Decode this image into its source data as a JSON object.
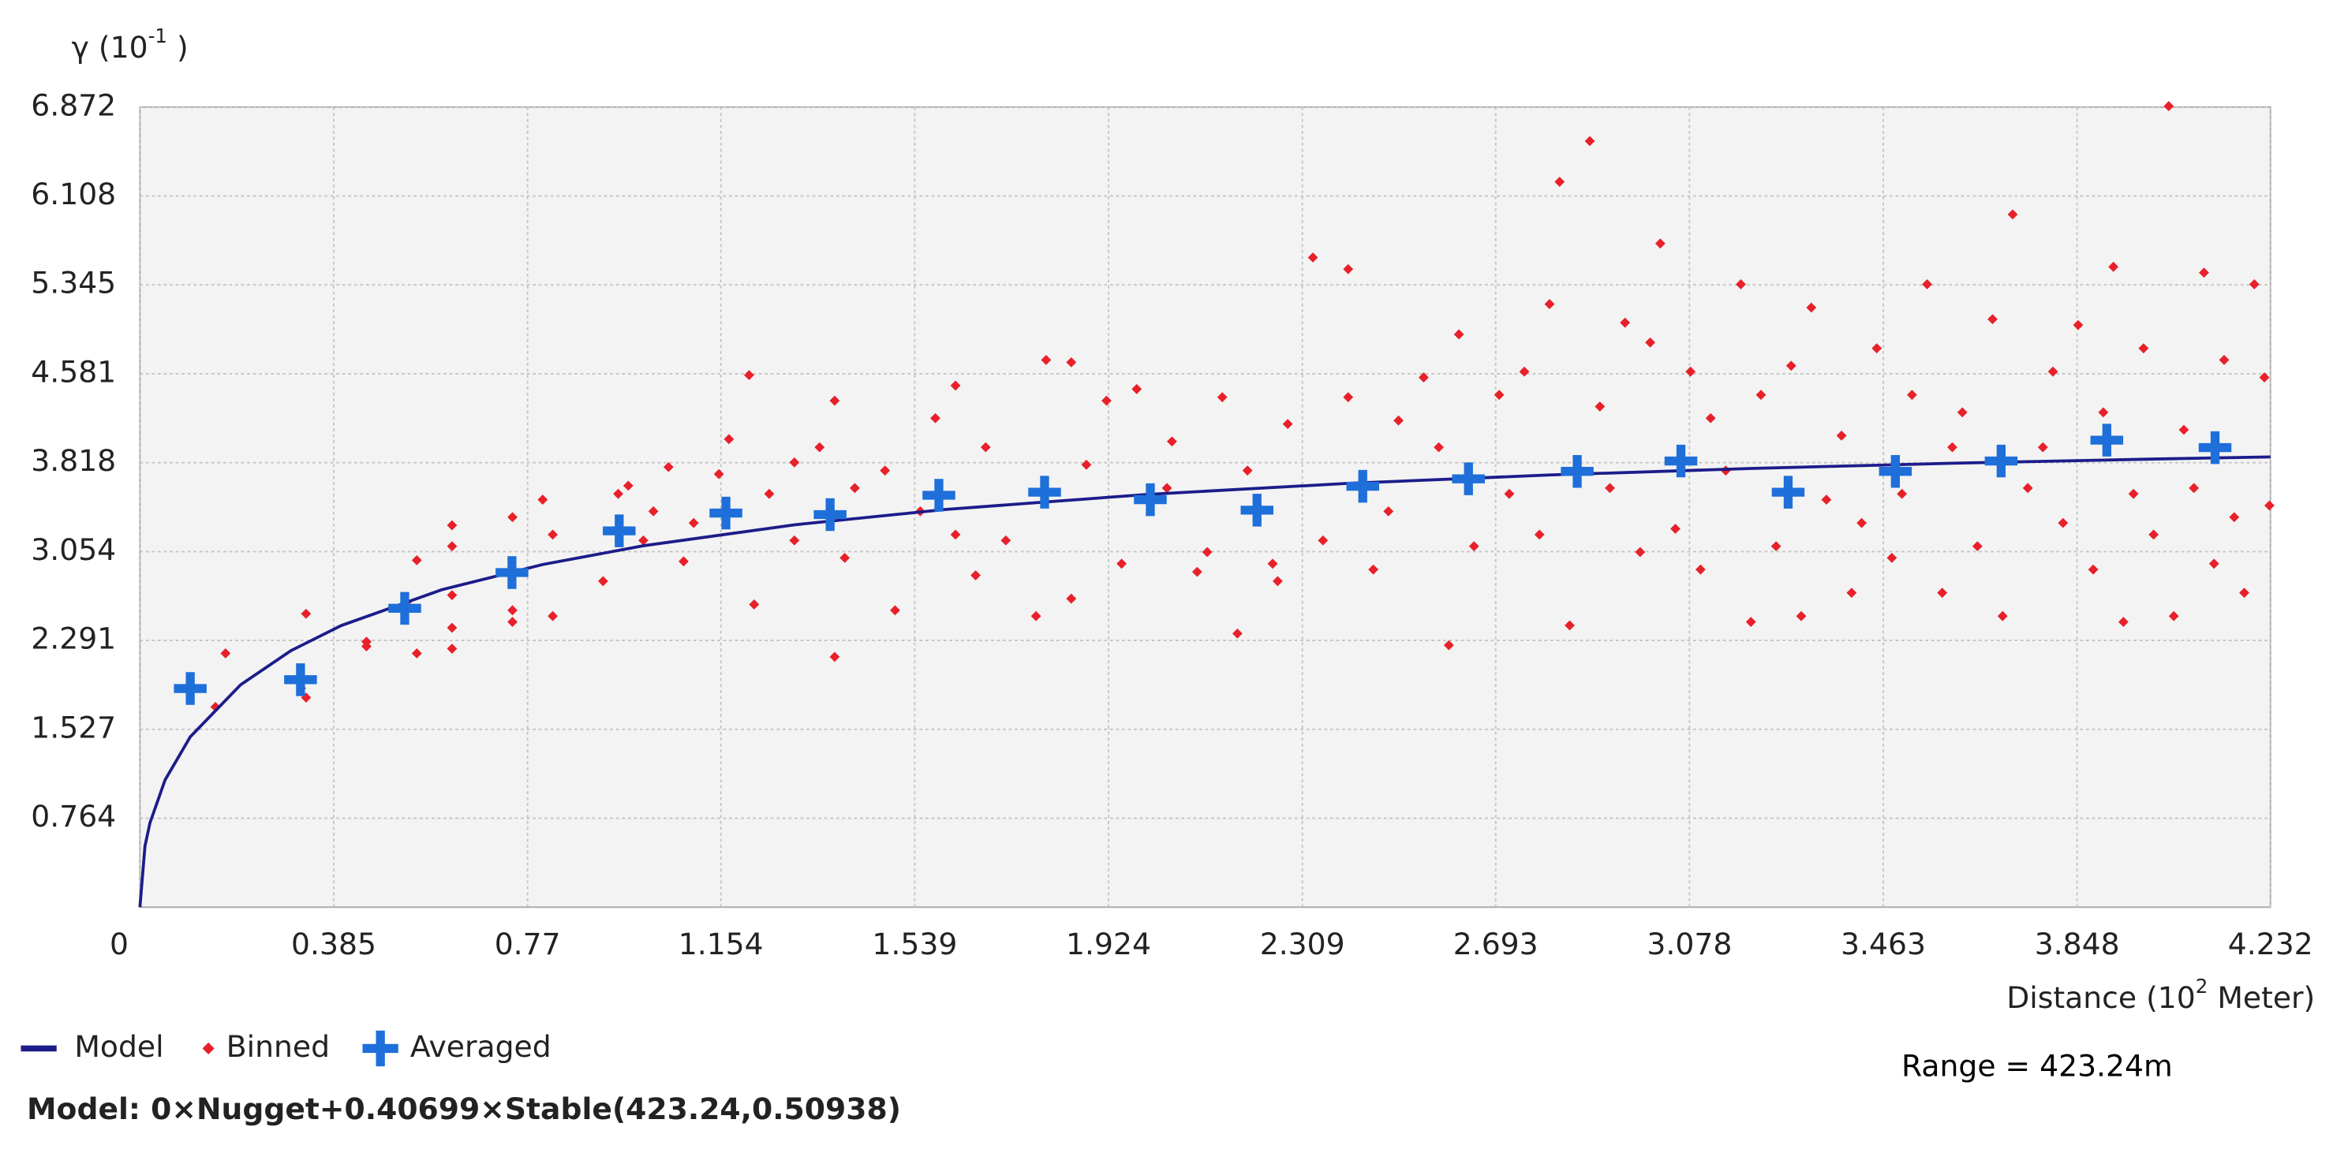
{
  "chart_data": {
    "type": "scatter",
    "ylabel": {
      "text": "γ (10",
      "superscript": "-1",
      "suffix": " )"
    },
    "xlabel": {
      "text": "Distance (10",
      "superscript": "2",
      "suffix": " Meter)"
    },
    "xlim": [
      0,
      4.232
    ],
    "ylim": [
      0,
      6.872
    ],
    "xticks": [
      0,
      0.385,
      0.77,
      1.154,
      1.539,
      1.924,
      2.309,
      2.693,
      3.078,
      3.463,
      3.848,
      4.232
    ],
    "yticks": [
      0.764,
      1.527,
      2.291,
      3.054,
      3.818,
      4.581,
      5.345,
      6.108,
      6.872
    ],
    "grid": true,
    "legend": "bottom-left",
    "series": [
      {
        "name": "Model",
        "color": "#1c1c8a",
        "marker": "line",
        "x": [
          0,
          0.01,
          0.02,
          0.05,
          0.1,
          0.2,
          0.3,
          0.4,
          0.6,
          0.8,
          1.0,
          1.3,
          1.6,
          2.0,
          2.4,
          2.8,
          3.2,
          3.6,
          4.0,
          4.232
        ],
        "values": [
          0,
          0.524,
          0.725,
          1.093,
          1.463,
          1.91,
          2.203,
          2.419,
          2.727,
          2.943,
          3.104,
          3.284,
          3.416,
          3.545,
          3.64,
          3.712,
          3.768,
          3.813,
          3.849,
          3.867
        ]
      },
      {
        "name": "Binned",
        "color": "#e8202a",
        "marker": "diamond",
        "x": [
          0.17,
          0.15,
          0.33,
          0.33,
          0.32,
          0.45,
          0.45,
          0.53,
          0.55,
          0.55,
          0.62,
          0.62,
          0.62,
          0.62,
          0.62,
          0.74,
          0.74,
          0.74,
          0.8,
          0.82,
          0.82,
          0.92,
          0.95,
          0.97,
          1.0,
          1.02,
          1.05,
          1.08,
          1.1,
          1.15,
          1.17,
          1.21,
          1.22,
          1.25,
          1.3,
          1.3,
          1.35,
          1.38,
          1.38,
          1.4,
          1.42,
          1.48,
          1.5,
          1.55,
          1.58,
          1.62,
          1.62,
          1.66,
          1.68,
          1.72,
          1.78,
          1.8,
          1.85,
          1.85,
          1.88,
          1.92,
          1.95,
          1.98,
          2.04,
          2.05,
          2.1,
          2.12,
          2.15,
          2.18,
          2.2,
          2.25,
          2.26,
          2.28,
          2.33,
          2.35,
          2.4,
          2.4,
          2.45,
          2.48,
          2.5,
          2.55,
          2.58,
          2.6,
          2.62,
          2.65,
          2.7,
          2.72,
          2.75,
          2.78,
          2.8,
          2.82,
          2.84,
          2.88,
          2.9,
          2.92,
          2.95,
          2.98,
          3.0,
          3.02,
          3.05,
          3.08,
          3.1,
          3.12,
          3.15,
          3.18,
          3.2,
          3.22,
          3.25,
          3.28,
          3.3,
          3.32,
          3.35,
          3.38,
          3.4,
          3.42,
          3.45,
          3.48,
          3.5,
          3.52,
          3.55,
          3.58,
          3.6,
          3.62,
          3.65,
          3.68,
          3.7,
          3.72,
          3.75,
          3.78,
          3.8,
          3.82,
          3.85,
          3.88,
          3.9,
          3.92,
          3.94,
          3.96,
          3.98,
          4.0,
          4.03,
          4.04,
          4.06,
          4.08,
          4.1,
          4.12,
          4.14,
          4.16,
          4.18,
          4.2,
          4.22,
          4.23
        ],
        "values": [
          2.18,
          1.72,
          2.52,
          1.8,
          1.88,
          2.24,
          2.28,
          2.62,
          2.18,
          2.98,
          2.4,
          2.68,
          2.22,
          3.28,
          3.1,
          3.35,
          2.45,
          2.55,
          3.5,
          2.5,
          3.2,
          2.8,
          3.55,
          3.62,
          3.15,
          3.4,
          3.78,
          2.97,
          3.3,
          3.72,
          4.02,
          4.57,
          2.6,
          3.55,
          3.82,
          3.15,
          3.95,
          4.35,
          2.15,
          3.0,
          3.6,
          3.75,
          2.55,
          3.4,
          4.2,
          4.48,
          3.2,
          2.85,
          3.95,
          3.15,
          2.5,
          4.7,
          4.68,
          2.65,
          3.8,
          4.35,
          2.95,
          4.45,
          3.6,
          4.0,
          2.88,
          3.05,
          4.38,
          2.35,
          3.75,
          2.95,
          2.8,
          4.15,
          5.58,
          3.15,
          5.48,
          4.38,
          2.9,
          3.4,
          4.18,
          4.55,
          3.95,
          2.25,
          4.92,
          3.1,
          4.4,
          3.55,
          4.6,
          3.2,
          5.18,
          6.23,
          2.42,
          6.58,
          4.3,
          3.6,
          5.02,
          3.05,
          4.85,
          5.7,
          3.25,
          4.6,
          2.9,
          4.2,
          3.75,
          5.35,
          2.45,
          4.4,
          3.1,
          4.65,
          2.5,
          5.15,
          3.5,
          4.05,
          2.7,
          3.3,
          4.8,
          3.0,
          3.55,
          4.4,
          5.35,
          2.7,
          3.95,
          4.25,
          3.1,
          5.05,
          2.5,
          5.95,
          3.6,
          3.95,
          4.6,
          3.3,
          5.0,
          2.9,
          4.25,
          5.5,
          2.45,
          3.55,
          4.8,
          3.2,
          6.88,
          2.5,
          4.1,
          3.6,
          5.45,
          2.95,
          4.7,
          3.35,
          2.7,
          5.35,
          4.55,
          3.45
        ]
      },
      {
        "name": "Averaged",
        "color": "#1e6fd9",
        "marker": "cross",
        "x": [
          0.1,
          0.319,
          0.526,
          0.739,
          0.952,
          1.164,
          1.371,
          1.587,
          1.797,
          2.007,
          2.219,
          2.429,
          2.639,
          2.855,
          3.061,
          3.274,
          3.487,
          3.697,
          3.907,
          4.122
        ],
        "values": [
          1.878,
          1.954,
          2.567,
          2.874,
          3.232,
          3.385,
          3.372,
          3.538,
          3.564,
          3.5,
          3.41,
          3.615,
          3.679,
          3.743,
          3.832,
          3.564,
          3.743,
          3.832,
          4.011,
          3.947
        ]
      }
    ],
    "model_equation": "Model: 0×Nugget+0.40699×Stable(423.24,0.50938)",
    "range_label": "Range = 423.24m"
  }
}
